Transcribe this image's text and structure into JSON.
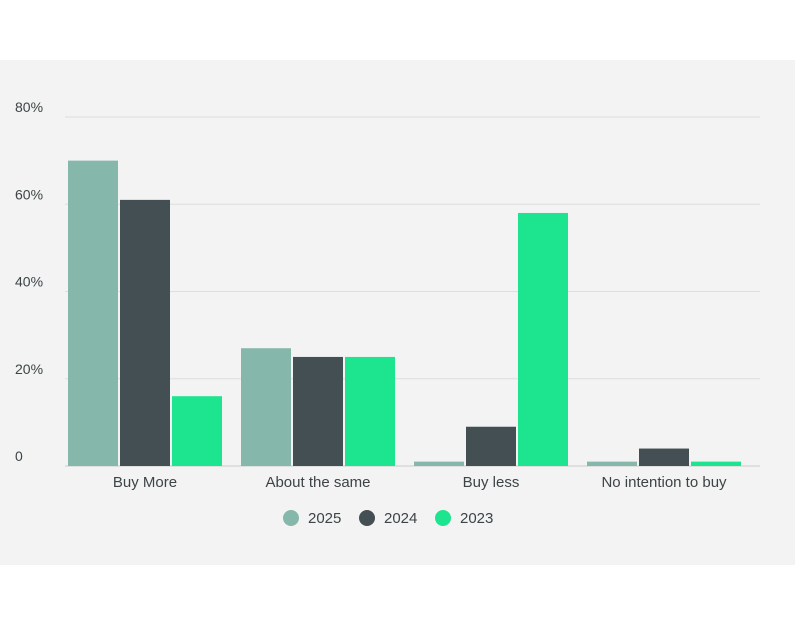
{
  "chart_data": {
    "type": "bar",
    "title": "",
    "xlabel": "",
    "ylabel": "",
    "ylim": [
      0,
      80
    ],
    "yticks": [
      0,
      20,
      40,
      60,
      80
    ],
    "ytick_labels": [
      "0",
      "20%",
      "40%",
      "60%",
      "80%"
    ],
    "grid": true,
    "legend_position": "bottom-center",
    "categories": [
      "Buy More",
      "About the same",
      "Buy less",
      "No intention to buy"
    ],
    "series": [
      {
        "name": "2025",
        "color": "#85b8aa",
        "values": [
          70,
          27,
          1,
          1
        ]
      },
      {
        "name": "2024",
        "color": "#434f52",
        "values": [
          61,
          25,
          9,
          4
        ]
      },
      {
        "name": "2023",
        "color": "#1de48f",
        "values": [
          16,
          25,
          58,
          1
        ]
      }
    ]
  }
}
